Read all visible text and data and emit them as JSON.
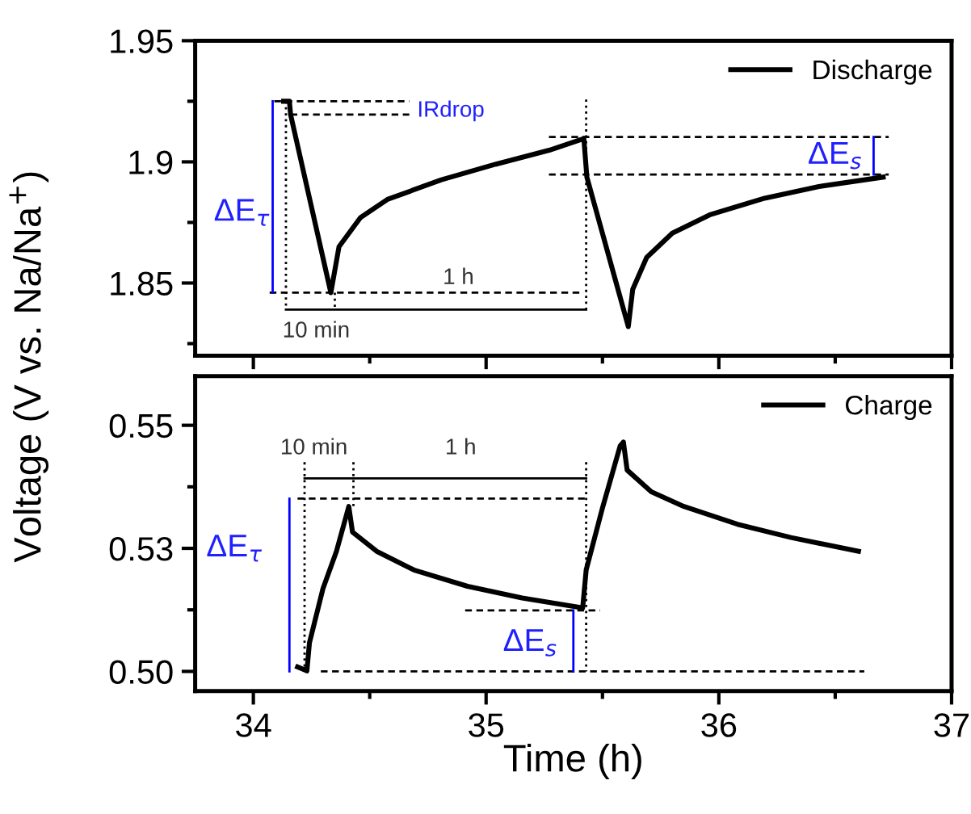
{
  "chart_data": [
    {
      "type": "line",
      "ylabel": "Voltage (V vs. Na/Na$^{+}$)",
      "xlim": [
        33.75,
        37
      ],
      "xticks": [
        34,
        35,
        36,
        37
      ],
      "ylim": [
        1.82,
        1.95
      ],
      "yticks": [
        1.85,
        1.9,
        1.95
      ],
      "tick_labels": "y",
      "legend": "top right",
      "grid": false,
      "annotations": [
        "IRdrop",
        "ΔE$_{τ}$",
        "ΔE$_{s}$",
        "10 min",
        "1 h"
      ],
      "series": [
        {
          "name": "Discharge",
          "color": "#000000",
          "line_style": "solid",
          "x": [
            34.13,
            34.155,
            34.16,
            34.333,
            34.368,
            34.46,
            34.576,
            34.808,
            35.04,
            35.271,
            35.42,
            35.433,
            35.611,
            35.63,
            35.69,
            35.8,
            35.965,
            36.197,
            36.43,
            36.706
          ],
          "values": [
            1.925,
            1.925,
            1.9195,
            1.846,
            1.865,
            1.877,
            1.8845,
            1.8926,
            1.899,
            1.9048,
            1.9096,
            1.8937,
            1.832,
            1.8474,
            1.8606,
            1.8706,
            1.8783,
            1.885,
            1.8898,
            1.8937
          ]
        },
        {
          "color": "#000000",
          "line_style": "dashed",
          "x": [
            34.09,
            34.67
          ],
          "values": [
            1.925,
            1.925
          ]
        },
        {
          "color": "#000000",
          "line_style": "dashed",
          "x": [
            34.16,
            34.67
          ],
          "values": [
            1.9195,
            1.9195
          ]
        },
        {
          "color": "#000000",
          "line_style": "dashed",
          "x": [
            35.27,
            36.73
          ],
          "values": [
            1.9103,
            1.9103
          ]
        },
        {
          "color": "#000000",
          "line_style": "dashed",
          "x": [
            35.27,
            36.73
          ],
          "values": [
            1.8948,
            1.8948
          ]
        },
        {
          "color": "#000000",
          "line_style": "dashed",
          "x": [
            34.07,
            35.42
          ],
          "values": [
            1.846,
            1.846
          ]
        },
        {
          "color": "#000000",
          "line_style": "dotted",
          "x": [
            34.14,
            34.14
          ],
          "values": [
            1.925,
            1.839
          ]
        },
        {
          "color": "#000000",
          "line_style": "dotted",
          "x": [
            34.35,
            34.35
          ],
          "values": [
            1.846,
            1.839
          ]
        },
        {
          "color": "#000000",
          "line_style": "dotted",
          "x": [
            35.43,
            35.43
          ],
          "values": [
            1.9257,
            1.839
          ]
        },
        {
          "color": "#000000",
          "line_style": "solid",
          "x": [
            34.14,
            34.35,
            35.43
          ],
          "values": [
            1.839,
            1.839,
            1.839
          ]
        },
        {
          "color": "#0000ff",
          "line_style": "solid",
          "x": [
            34.083,
            34.083
          ],
          "values": [
            1.925,
            1.846
          ]
        },
        {
          "color": "#0000ff",
          "line_style": "solid",
          "x": [
            36.665,
            36.665
          ],
          "values": [
            1.9103,
            1.8948
          ]
        }
      ]
    },
    {
      "type": "line",
      "xlabel": "Time (h)",
      "xlim": [
        33.75,
        37
      ],
      "xticks": [
        34,
        35,
        36,
        37
      ],
      "ylim": [
        0.496,
        0.56
      ],
      "yticks": [
        {
          "value": 0.5,
          "label": "0.50"
        },
        {
          "value": 0.525,
          "label": "0.53"
        },
        {
          "value": 0.55,
          "label": "0.55"
        }
      ],
      "legend": "top right",
      "grid": false,
      "annotations": [
        "10 min",
        "1 h",
        "ΔE$_{τ}$",
        "ΔE$_{s}$"
      ],
      "series": [
        {
          "name": "Charge",
          "color": "#000000",
          "line_style": "solid",
          "x": [
            34.19,
            34.23,
            34.241,
            34.299,
            34.357,
            34.41,
            34.426,
            34.53,
            34.69,
            34.92,
            35.155,
            35.415,
            35.43,
            35.5,
            35.576,
            35.59,
            35.606,
            35.71,
            35.85,
            36.08,
            36.31,
            36.6
          ],
          "values": [
            0.5009,
            0.5001,
            0.5058,
            0.5168,
            0.5244,
            0.5335,
            0.5283,
            0.5244,
            0.5206,
            0.5173,
            0.5149,
            0.5129,
            0.5206,
            0.5332,
            0.5458,
            0.5466,
            0.5409,
            0.5365,
            0.5335,
            0.5299,
            0.5272,
            0.5244
          ]
        },
        {
          "color": "#000000",
          "line_style": "dashed",
          "x": [
            34.19,
            35.43
          ],
          "values": [
            0.5351,
            0.5351
          ]
        },
        {
          "color": "#000000",
          "line_style": "dashed",
          "x": [
            34.29,
            36.625
          ],
          "values": [
            0.5,
            0.5
          ]
        },
        {
          "color": "#000000",
          "line_style": "dashed",
          "x": [
            34.91,
            35.49
          ],
          "values": [
            0.5124,
            0.5124
          ]
        },
        {
          "color": "#000000",
          "line_style": "dotted",
          "x": [
            34.22,
            34.22
          ],
          "values": [
            0.5425,
            0.5
          ]
        },
        {
          "color": "#000000",
          "line_style": "dotted",
          "x": [
            34.43,
            34.43
          ],
          "values": [
            0.5425,
            0.533
          ]
        },
        {
          "color": "#000000",
          "line_style": "dotted",
          "x": [
            35.43,
            35.43
          ],
          "values": [
            0.5425,
            0.5
          ]
        },
        {
          "color": "#000000",
          "line_style": "solid",
          "x": [
            34.22,
            34.43,
            35.43
          ],
          "values": [
            0.5392,
            0.5392,
            0.5392
          ]
        },
        {
          "color": "#0000ff",
          "line_style": "solid",
          "x": [
            34.155,
            34.155
          ],
          "values": [
            0.5351,
            0.5
          ]
        },
        {
          "color": "#0000ff",
          "line_style": "solid",
          "x": [
            35.375,
            35.375
          ],
          "values": [
            0.5124,
            0.5
          ]
        }
      ]
    }
  ]
}
